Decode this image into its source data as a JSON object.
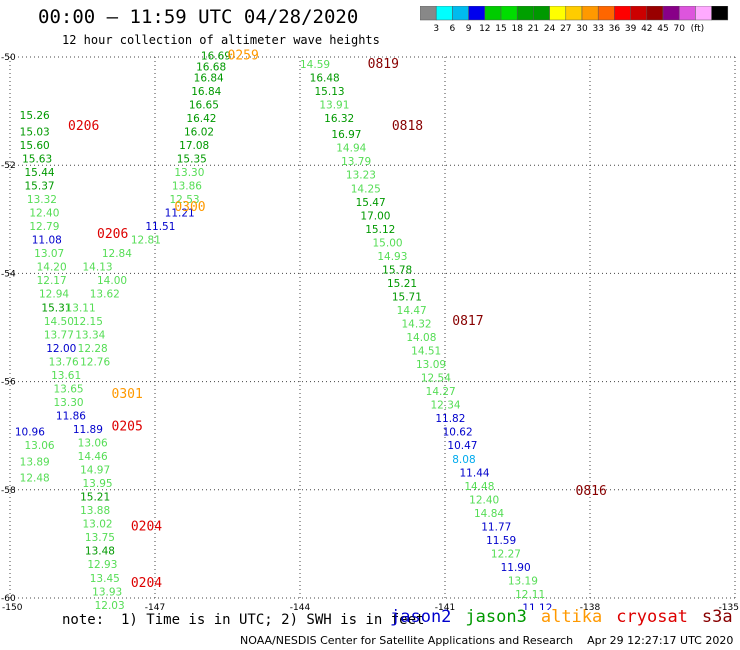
{
  "title": "00:00 – 11:59 UTC 04/28/2020",
  "subtitle": "12 hour collection of altimeter wave heights",
  "colorbar": {
    "colors": [
      "#888888",
      "#00ffff",
      "#00bbee",
      "#0000ee",
      "#00cc00",
      "#00dd00",
      "#00a000",
      "#009900",
      "#ffff00",
      "#ffcc00",
      "#ff9900",
      "#ff6600",
      "#ff0000",
      "#cc0000",
      "#990000",
      "#880088",
      "#dd55dd",
      "#ffaaff",
      "#000000"
    ],
    "labels": [
      "3",
      "6",
      "9",
      "12",
      "15",
      "18",
      "21",
      "24",
      "27",
      "30",
      "33",
      "36",
      "39",
      "42",
      "45",
      "70",
      "(ft)"
    ]
  },
  "footer": {
    "note": "note:  1) Time is in UTC; 2) SWH is in feet",
    "credit": "NOAA/NESDIS Center for Satellite Applications and Research    Apr 29 12:27:17 UTC 2020"
  },
  "legend": [
    {
      "name": "jason2",
      "color": "#0000cc"
    },
    {
      "name": "jason3",
      "color": "#009900"
    },
    {
      "name": "altika",
      "color": "#ff9900"
    },
    {
      "name": "cryosat",
      "color": "#dd0000"
    },
    {
      "name": "s3a",
      "color": "#880000"
    }
  ],
  "chart_data": {
    "type": "scatter",
    "xlim": [
      -150,
      -135
    ],
    "ylim": [
      -60,
      -50
    ],
    "x_ticks": [
      -150,
      -147,
      -144,
      -141,
      -138,
      -135
    ],
    "y_ticks": [
      -50,
      -52,
      -54,
      -56,
      -58,
      -60
    ],
    "x_tick_labels": [
      "-150",
      "-147",
      "-144",
      "-141",
      "-138",
      "-135"
    ],
    "y_tick_labels": [
      "-50",
      "-52",
      "-54",
      "-56",
      "-58",
      "-60"
    ],
    "grid": "dotted",
    "tracks": [
      {
        "satellite": "cryosat",
        "color": "#dd0000",
        "times": [
          {
            "text": "0206",
            "lon": -148.8,
            "lat": -51.35
          },
          {
            "text": "0206",
            "lon": -148.2,
            "lat": -53.35
          },
          {
            "text": "0205",
            "lon": -147.9,
            "lat": -56.9
          },
          {
            "text": "0204",
            "lon": -147.5,
            "lat": -58.75
          },
          {
            "text": "0204",
            "lon": -147.5,
            "lat": -59.8
          }
        ],
        "points": [
          {
            "lon": -149.8,
            "lat": -51.15,
            "v": "15.26",
            "c": "#009900"
          },
          {
            "lon": -149.8,
            "lat": -51.45,
            "v": "15.03",
            "c": "#009900"
          },
          {
            "lon": -149.8,
            "lat": -51.7,
            "v": "15.60",
            "c": "#009900"
          },
          {
            "lon": -149.75,
            "lat": -51.95,
            "v": "15.63",
            "c": "#009900"
          },
          {
            "lon": -149.7,
            "lat": -52.2,
            "v": "15.44",
            "c": "#009900"
          },
          {
            "lon": -149.7,
            "lat": -52.45,
            "v": "15.37",
            "c": "#009900"
          },
          {
            "lon": -149.65,
            "lat": -52.7,
            "v": "13.32",
            "c": "#55dd55"
          },
          {
            "lon": -149.6,
            "lat": -52.95,
            "v": "12.40",
            "c": "#55dd55"
          },
          {
            "lon": -149.6,
            "lat": -53.2,
            "v": "12.79",
            "c": "#55dd55"
          },
          {
            "lon": -149.55,
            "lat": -53.45,
            "v": "11.08",
            "c": "#0000cc"
          },
          {
            "lon": -149.5,
            "lat": -53.7,
            "v": "13.07",
            "c": "#55dd55"
          },
          {
            "lon": -149.45,
            "lat": -53.95,
            "v": "14.20",
            "c": "#55dd55"
          },
          {
            "lon": -149.45,
            "lat": -54.2,
            "v": "12.17",
            "c": "#55dd55"
          },
          {
            "lon": -149.4,
            "lat": -54.45,
            "v": "12.94",
            "c": "#55dd55"
          },
          {
            "lon": -149.35,
            "lat": -54.7,
            "v": "15.31",
            "c": "#009900"
          },
          {
            "lon": -149.3,
            "lat": -54.95,
            "v": "14.50",
            "c": "#55dd55"
          },
          {
            "lon": -149.3,
            "lat": -55.2,
            "v": "13.77",
            "c": "#55dd55"
          },
          {
            "lon": -149.25,
            "lat": -55.45,
            "v": "12.00",
            "c": "#0000cc"
          },
          {
            "lon": -149.2,
            "lat": -55.7,
            "v": "13.76",
            "c": "#55dd55"
          },
          {
            "lon": -149.15,
            "lat": -55.95,
            "v": "13.61",
            "c": "#55dd55"
          },
          {
            "lon": -149.1,
            "lat": -56.2,
            "v": "13.65",
            "c": "#55dd55"
          },
          {
            "lon": -149.1,
            "lat": -56.45,
            "v": "13.30",
            "c": "#55dd55"
          },
          {
            "lon": -149.05,
            "lat": -56.7,
            "v": "11.86",
            "c": "#0000cc"
          },
          {
            "lon": -149.9,
            "lat": -57.0,
            "v": "10.96",
            "c": "#0000cc"
          },
          {
            "lon": -149.7,
            "lat": -57.25,
            "v": "13.06",
            "c": "#55dd55"
          },
          {
            "lon": -149.8,
            "lat": -57.55,
            "v": "13.89",
            "c": "#55dd55"
          },
          {
            "lon": -149.8,
            "lat": -57.85,
            "v": "12.48",
            "c": "#55dd55"
          }
        ]
      },
      {
        "satellite": "jason3",
        "color": "#009900",
        "times": [],
        "points": [
          {
            "lon": -148.7,
            "lat": -56.95,
            "v": "11.89",
            "c": "#0000cc"
          },
          {
            "lon": -148.6,
            "lat": -57.2,
            "v": "13.06",
            "c": "#55dd55"
          },
          {
            "lon": -148.6,
            "lat": -57.45,
            "v": "14.46",
            "c": "#55dd55"
          },
          {
            "lon": -148.55,
            "lat": -57.7,
            "v": "14.97",
            "c": "#55dd55"
          },
          {
            "lon": -148.5,
            "lat": -57.95,
            "v": "13.95",
            "c": "#55dd55"
          },
          {
            "lon": -148.55,
            "lat": -58.2,
            "v": "15.21",
            "c": "#009900"
          },
          {
            "lon": -148.55,
            "lat": -58.45,
            "v": "13.88",
            "c": "#55dd55"
          },
          {
            "lon": -148.5,
            "lat": -58.7,
            "v": "13.02",
            "c": "#55dd55"
          },
          {
            "lon": -148.45,
            "lat": -58.95,
            "v": "13.75",
            "c": "#55dd55"
          },
          {
            "lon": -148.45,
            "lat": -59.2,
            "v": "13.48",
            "c": "#009900"
          },
          {
            "lon": -148.4,
            "lat": -59.45,
            "v": "12.93",
            "c": "#55dd55"
          },
          {
            "lon": -148.35,
            "lat": -59.7,
            "v": "13.45",
            "c": "#55dd55"
          },
          {
            "lon": -148.3,
            "lat": -59.95,
            "v": "13.93",
            "c": "#55dd55"
          },
          {
            "lon": -148.25,
            "lat": -60.2,
            "v": "12.03",
            "c": "#55dd55"
          },
          {
            "lon": -148.2,
            "lat": -60.45,
            "v": "11.71",
            "c": "#0000cc"
          },
          {
            "lon": -148.85,
            "lat": -54.7,
            "v": "13.11",
            "c": "#55dd55"
          },
          {
            "lon": -148.7,
            "lat": -54.95,
            "v": "12.15",
            "c": "#55dd55"
          },
          {
            "lon": -148.65,
            "lat": -55.2,
            "v": "13.34",
            "c": "#55dd55"
          },
          {
            "lon": -148.6,
            "lat": -55.45,
            "v": "12.28",
            "c": "#55dd55"
          },
          {
            "lon": -148.55,
            "lat": -55.7,
            "v": "12.76",
            "c": "#55dd55"
          },
          {
            "lon": -148.35,
            "lat": -54.45,
            "v": "13.62",
            "c": "#55dd55"
          },
          {
            "lon": -148.2,
            "lat": -54.2,
            "v": "14.00",
            "c": "#55dd55"
          },
          {
            "lon": -148.5,
            "lat": -53.95,
            "v": "14.13",
            "c": "#55dd55"
          },
          {
            "lon": -148.1,
            "lat": -53.7,
            "v": "12.84",
            "c": "#55dd55"
          },
          {
            "lon": -147.5,
            "lat": -53.45,
            "v": "12.81",
            "c": "#55dd55"
          }
        ]
      },
      {
        "satellite": "altika",
        "color": "#ff9900",
        "times": [
          {
            "text": "0300",
            "lon": -146.6,
            "lat": -52.85
          },
          {
            "text": "0301",
            "lon": -147.9,
            "lat": -56.3
          },
          {
            "text": "0259",
            "lon": -145.5,
            "lat": -50.05
          }
        ],
        "points": [
          {
            "lon": -147.2,
            "lat": -53.2,
            "v": "11.51",
            "c": "#0000cc"
          },
          {
            "lon": -146.8,
            "lat": -52.95,
            "v": "11.21",
            "c": "#0000cc"
          },
          {
            "lon": -146.7,
            "lat": -52.7,
            "v": "12.53",
            "c": "#55dd55"
          },
          {
            "lon": -146.65,
            "lat": -52.45,
            "v": "13.86",
            "c": "#55dd55"
          },
          {
            "lon": -146.6,
            "lat": -52.2,
            "v": "13.30",
            "c": "#55dd55"
          },
          {
            "lon": -146.55,
            "lat": -51.95,
            "v": "15.35",
            "c": "#009900"
          },
          {
            "lon": -146.5,
            "lat": -51.7,
            "v": "17.08",
            "c": "#009900"
          },
          {
            "lon": -146.4,
            "lat": -51.45,
            "v": "16.02",
            "c": "#009900"
          },
          {
            "lon": -146.35,
            "lat": -51.2,
            "v": "16.42",
            "c": "#009900"
          },
          {
            "lon": -146.3,
            "lat": -50.95,
            "v": "16.65",
            "c": "#009900"
          },
          {
            "lon": -146.25,
            "lat": -50.7,
            "v": "16.84",
            "c": "#009900"
          },
          {
            "lon": -146.2,
            "lat": -50.45,
            "v": "16.84",
            "c": "#009900"
          },
          {
            "lon": -146.15,
            "lat": -50.25,
            "v": "16.68",
            "c": "#009900"
          },
          {
            "lon": -146.05,
            "lat": -50.05,
            "v": "16.69",
            "c": "#009900"
          }
        ]
      },
      {
        "satellite": "s3a",
        "color": "#880000",
        "times": [
          {
            "text": "0819",
            "lon": -142.6,
            "lat": -50.2
          },
          {
            "text": "0818",
            "lon": -142.1,
            "lat": -51.35
          },
          {
            "text": "0817",
            "lon": -140.85,
            "lat": -54.95
          },
          {
            "text": "0816",
            "lon": -138.3,
            "lat": -58.1
          }
        ],
        "points": [
          {
            "lon": -144.0,
            "lat": -50.2,
            "v": "14.59",
            "c": "#55dd55"
          },
          {
            "lon": -143.8,
            "lat": -50.45,
            "v": "16.48",
            "c": "#009900"
          },
          {
            "lon": -143.7,
            "lat": -50.7,
            "v": "15.13",
            "c": "#009900"
          },
          {
            "lon": -143.6,
            "lat": -50.95,
            "v": "13.91",
            "c": "#55dd55"
          },
          {
            "lon": -143.5,
            "lat": -51.2,
            "v": "16.32",
            "c": "#009900"
          },
          {
            "lon": -143.35,
            "lat": -51.5,
            "v": "16.97",
            "c": "#009900"
          },
          {
            "lon": -143.25,
            "lat": -51.75,
            "v": "14.94",
            "c": "#55dd55"
          },
          {
            "lon": -143.15,
            "lat": -52.0,
            "v": "13.79",
            "c": "#55dd55"
          },
          {
            "lon": -143.05,
            "lat": -52.25,
            "v": "13.23",
            "c": "#55dd55"
          },
          {
            "lon": -142.95,
            "lat": -52.5,
            "v": "14.25",
            "c": "#55dd55"
          },
          {
            "lon": -142.85,
            "lat": -52.75,
            "v": "15.47",
            "c": "#009900"
          },
          {
            "lon": -142.75,
            "lat": -53.0,
            "v": "17.00",
            "c": "#009900"
          },
          {
            "lon": -142.65,
            "lat": -53.25,
            "v": "15.12",
            "c": "#009900"
          },
          {
            "lon": -142.5,
            "lat": -53.5,
            "v": "15.00",
            "c": "#55dd55"
          },
          {
            "lon": -142.4,
            "lat": -53.75,
            "v": "14.93",
            "c": "#55dd55"
          },
          {
            "lon": -142.3,
            "lat": -54.0,
            "v": "15.78",
            "c": "#009900"
          },
          {
            "lon": -142.2,
            "lat": -54.25,
            "v": "15.21",
            "c": "#009900"
          },
          {
            "lon": -142.1,
            "lat": -54.5,
            "v": "15.71",
            "c": "#009900"
          },
          {
            "lon": -142.0,
            "lat": -54.75,
            "v": "14.47",
            "c": "#55dd55"
          },
          {
            "lon": -141.9,
            "lat": -55.0,
            "v": "14.32",
            "c": "#55dd55"
          },
          {
            "lon": -141.8,
            "lat": -55.25,
            "v": "14.08",
            "c": "#55dd55"
          },
          {
            "lon": -141.7,
            "lat": -55.5,
            "v": "14.51",
            "c": "#55dd55"
          },
          {
            "lon": -141.6,
            "lat": -55.75,
            "v": "13.09",
            "c": "#55dd55"
          },
          {
            "lon": -141.5,
            "lat": -56.0,
            "v": "12.54",
            "c": "#55dd55"
          },
          {
            "lon": -141.4,
            "lat": -56.25,
            "v": "14.27",
            "c": "#55dd55"
          },
          {
            "lon": -141.3,
            "lat": -56.5,
            "v": "12.34",
            "c": "#55dd55"
          },
          {
            "lon": -141.2,
            "lat": -56.75,
            "v": "11.82",
            "c": "#0000cc"
          },
          {
            "lon": -141.05,
            "lat": -57.0,
            "v": "10.62",
            "c": "#0000cc"
          },
          {
            "lon": -140.95,
            "lat": -57.25,
            "v": "10.47",
            "c": "#0000cc"
          },
          {
            "lon": -140.85,
            "lat": -57.5,
            "v": "8.08",
            "c": "#00aaee"
          },
          {
            "lon": -140.7,
            "lat": -57.75,
            "v": "11.44",
            "c": "#0000cc"
          },
          {
            "lon": -140.6,
            "lat": -58.0,
            "v": "14.48",
            "c": "#55dd55"
          },
          {
            "lon": -140.5,
            "lat": -58.25,
            "v": "12.40",
            "c": "#55dd55"
          },
          {
            "lon": -140.4,
            "lat": -58.5,
            "v": "14.84",
            "c": "#55dd55"
          },
          {
            "lon": -140.25,
            "lat": -58.75,
            "v": "11.77",
            "c": "#0000cc"
          },
          {
            "lon": -140.15,
            "lat": -59.0,
            "v": "11.59",
            "c": "#0000cc"
          },
          {
            "lon": -140.05,
            "lat": -59.25,
            "v": "12.27",
            "c": "#55dd55"
          },
          {
            "lon": -139.85,
            "lat": -59.5,
            "v": "11.90",
            "c": "#0000cc"
          },
          {
            "lon": -139.7,
            "lat": -59.75,
            "v": "13.19",
            "c": "#55dd55"
          },
          {
            "lon": -139.55,
            "lat": -60.0,
            "v": "12.11",
            "c": "#55dd55"
          },
          {
            "lon": -139.4,
            "lat": -60.25,
            "v": "11.12",
            "c": "#0000cc"
          },
          {
            "lon": -139.25,
            "lat": -60.5,
            "v": "9.82",
            "c": "#0000cc"
          },
          {
            "lon": -139.1,
            "lat": -60.75,
            "v": "11.42",
            "c": "#0000cc"
          }
        ]
      }
    ]
  }
}
